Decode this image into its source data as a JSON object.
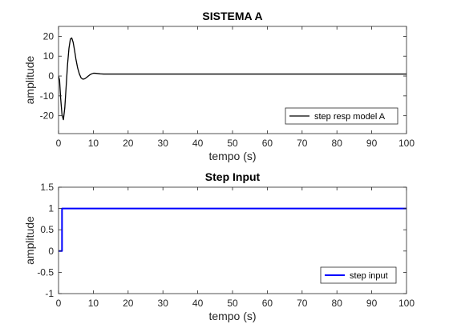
{
  "chart_data": [
    {
      "type": "line",
      "title": "SISTEMA A",
      "xlabel": "tempo (s)",
      "ylabel": "amplitude",
      "xlim": [
        0,
        100
      ],
      "ylim": [
        -29,
        25
      ],
      "xticks": [
        0,
        10,
        20,
        30,
        40,
        50,
        60,
        70,
        80,
        90,
        100
      ],
      "yticks": [
        -20,
        -10,
        0,
        10,
        20
      ],
      "grid": false,
      "legend": "bottom-right",
      "series": [
        {
          "name": "step resp model A",
          "color": "#000000",
          "x": [
            0,
            0.3,
            0.6,
            1.0,
            1.4,
            1.8,
            2.2,
            2.6,
            3.0,
            3.4,
            3.8,
            4.2,
            4.6,
            5.0,
            5.5,
            6.0,
            6.5,
            7.0,
            7.5,
            8.0,
            8.5,
            9.0,
            9.5,
            10.0,
            10.5,
            11.0,
            12.0,
            13.0,
            14.0,
            16.0,
            18.0,
            20.0,
            30.0,
            50.0,
            70.0,
            100.0
          ],
          "y": [
            0,
            -2,
            -11,
            -19.5,
            -22,
            -16,
            -5,
            6,
            14,
            18.6,
            19.2,
            17,
            13,
            8.5,
            4,
            1,
            -1,
            -1.6,
            -1.4,
            -0.8,
            -0.1,
            0.6,
            1.1,
            1.4,
            1.4,
            1.3,
            1.1,
            1.0,
            1.0,
            1.0,
            1.0,
            1.0,
            1.0,
            1.0,
            1.0,
            1.0
          ]
        }
      ]
    },
    {
      "type": "line",
      "title": "Step Input",
      "xlabel": "tempo (s)",
      "ylabel": "amplitude",
      "xlim": [
        0,
        100
      ],
      "ylim": [
        -1,
        1.5
      ],
      "xticks": [
        0,
        10,
        20,
        30,
        40,
        50,
        60,
        70,
        80,
        90,
        100
      ],
      "yticks": [
        -1,
        -0.5,
        0,
        0.5,
        1,
        1.5
      ],
      "grid": false,
      "legend": "bottom-right",
      "series": [
        {
          "name": "step input",
          "color": "#0000ff",
          "x": [
            0,
            1.0,
            1.0,
            100
          ],
          "y": [
            0,
            0,
            1,
            1
          ]
        }
      ]
    }
  ]
}
